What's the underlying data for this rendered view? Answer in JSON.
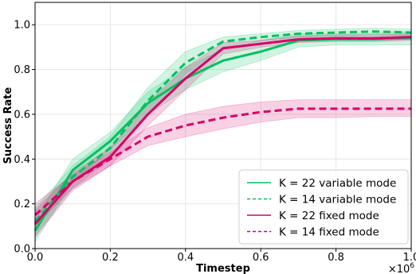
{
  "chart_data": {
    "type": "line",
    "title": "",
    "xlabel": "Timestep",
    "ylabel": "Success Rate",
    "x_multiplier_label": "×10",
    "x_multiplier_exp": "6",
    "xlim": [
      0.0,
      1.0
    ],
    "ylim": [
      0.0,
      1.1
    ],
    "xticks": [
      0.0,
      0.2,
      0.4,
      0.6,
      0.8,
      1.0
    ],
    "xtick_labels": [
      "0.0",
      "0.2",
      "0.4",
      "0.6",
      "0.8",
      "1.0"
    ],
    "yticks": [
      0.0,
      0.2,
      0.4,
      0.6,
      0.8,
      1.0
    ],
    "ytick_labels": [
      "0.0",
      "0.2",
      "0.4",
      "0.6",
      "0.8",
      "1.0"
    ],
    "grid": true,
    "legend_position": "bottom-right",
    "series": [
      {
        "name": "K = 22 variable mode",
        "color": "#00c060",
        "dash": false,
        "x": [
          0.0,
          0.1,
          0.2,
          0.3,
          0.4,
          0.5,
          0.6,
          0.7,
          0.8,
          0.9,
          1.0
        ],
        "y": [
          0.08,
          0.35,
          0.48,
          0.65,
          0.76,
          0.84,
          0.88,
          0.93,
          0.935,
          0.935,
          0.94
        ],
        "lower": [
          0.03,
          0.3,
          0.44,
          0.6,
          0.71,
          0.79,
          0.84,
          0.9,
          0.91,
          0.91,
          0.91
        ],
        "upper": [
          0.13,
          0.4,
          0.52,
          0.7,
          0.81,
          0.89,
          0.93,
          0.96,
          0.96,
          0.96,
          0.97
        ]
      },
      {
        "name": "K = 14 variable mode",
        "color": "#00c060",
        "dash": true,
        "x": [
          0.0,
          0.1,
          0.2,
          0.3,
          0.4,
          0.5,
          0.6,
          0.7,
          0.8,
          0.9,
          1.0
        ],
        "y": [
          0.12,
          0.32,
          0.45,
          0.66,
          0.83,
          0.925,
          0.945,
          0.96,
          0.965,
          0.97,
          0.965
        ],
        "lower": [
          0.06,
          0.27,
          0.4,
          0.6,
          0.78,
          0.9,
          0.93,
          0.945,
          0.95,
          0.955,
          0.95
        ],
        "upper": [
          0.18,
          0.37,
          0.5,
          0.72,
          0.88,
          0.945,
          0.96,
          0.975,
          0.98,
          0.985,
          0.98
        ]
      },
      {
        "name": "K = 22 fixed mode",
        "color": "#d6006a",
        "dash": false,
        "x": [
          0.0,
          0.1,
          0.2,
          0.3,
          0.4,
          0.5,
          0.6,
          0.7,
          0.8,
          0.9,
          1.0
        ],
        "y": [
          0.11,
          0.3,
          0.41,
          0.6,
          0.76,
          0.895,
          0.915,
          0.935,
          0.94,
          0.94,
          0.945
        ],
        "lower": [
          0.05,
          0.26,
          0.37,
          0.55,
          0.71,
          0.87,
          0.9,
          0.92,
          0.925,
          0.925,
          0.93
        ],
        "upper": [
          0.17,
          0.34,
          0.45,
          0.65,
          0.81,
          0.92,
          0.93,
          0.95,
          0.955,
          0.955,
          0.96
        ]
      },
      {
        "name": "K = 14 fixed mode",
        "color": "#d6006a",
        "dash": true,
        "x": [
          0.0,
          0.1,
          0.2,
          0.3,
          0.4,
          0.5,
          0.6,
          0.7,
          0.8,
          0.9,
          1.0
        ],
        "y": [
          0.15,
          0.3,
          0.4,
          0.5,
          0.55,
          0.585,
          0.61,
          0.625,
          0.625,
          0.625,
          0.625
        ],
        "lower": [
          0.1,
          0.27,
          0.37,
          0.46,
          0.5,
          0.535,
          0.565,
          0.585,
          0.585,
          0.59,
          0.59
        ],
        "upper": [
          0.2,
          0.33,
          0.43,
          0.54,
          0.6,
          0.635,
          0.655,
          0.665,
          0.665,
          0.665,
          0.665
        ]
      }
    ]
  }
}
